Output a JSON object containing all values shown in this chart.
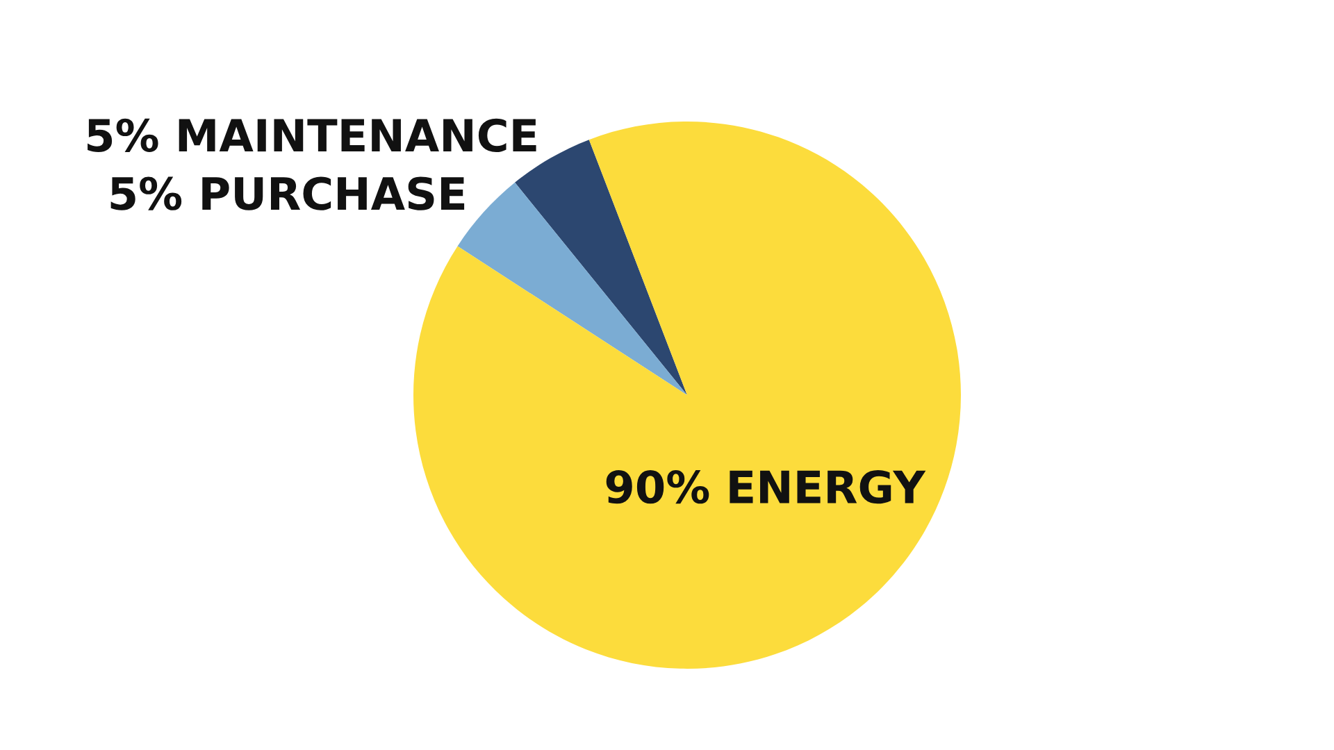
{
  "chart_data": {
    "type": "pie",
    "categories": [
      "MAINTENANCE",
      "PURCHASE",
      "ENERGY"
    ],
    "values": [
      5,
      5,
      90
    ],
    "value_labels": [
      "5%",
      "5%",
      "90%"
    ],
    "colors": [
      "#2c4770",
      "#7bacd3",
      "#fcdc3c"
    ]
  }
}
